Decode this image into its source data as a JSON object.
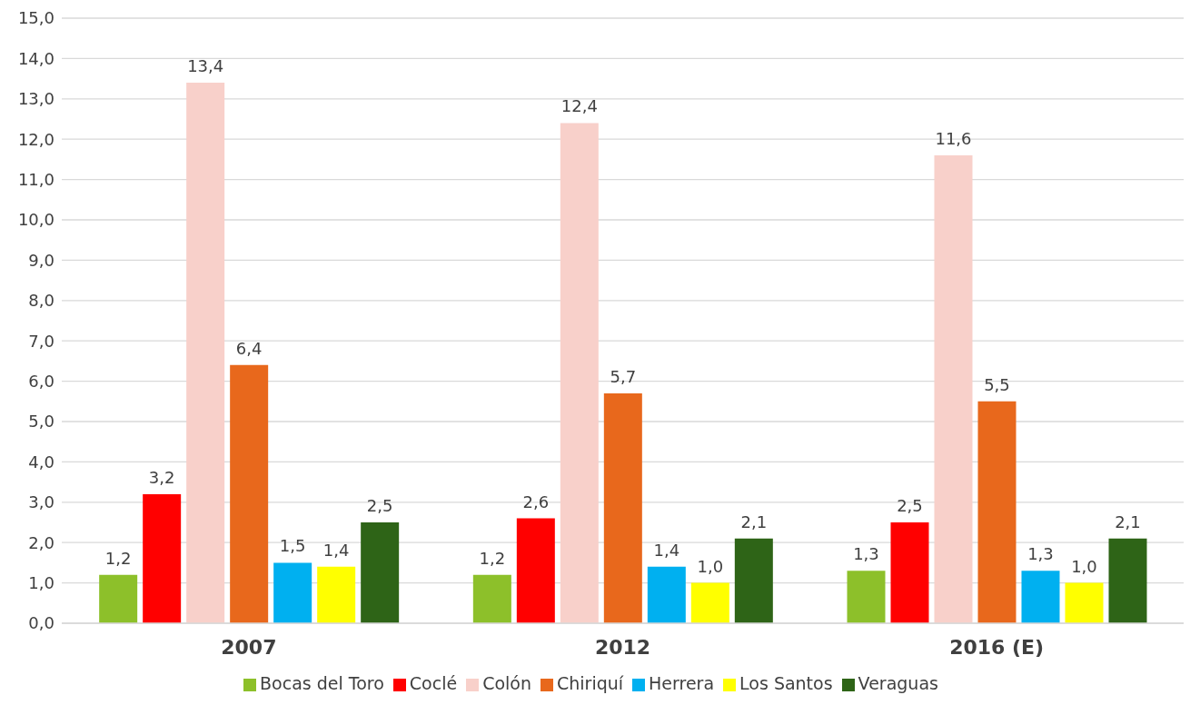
{
  "chart_data": {
    "type": "bar",
    "categories": [
      "2007",
      "2012",
      "2016 (E)"
    ],
    "series": [
      {
        "name": "Bocas del Toro",
        "color": "#8dc02a",
        "values": [
          1.2,
          1.2,
          1.3
        ],
        "value_labels": [
          "1,2",
          "1,2",
          "1,3"
        ]
      },
      {
        "name": "Coclé",
        "color": "#ff0000",
        "values": [
          3.2,
          2.6,
          2.5
        ],
        "value_labels": [
          "3,2",
          "2,6",
          "2,5"
        ]
      },
      {
        "name": "Colón",
        "color": "#f8d0ca",
        "values": [
          13.4,
          12.4,
          11.6
        ],
        "value_labels": [
          "13,4",
          "12,4",
          "11,6"
        ]
      },
      {
        "name": "Chiriquí",
        "color": "#e8681c",
        "values": [
          6.4,
          5.7,
          5.5
        ],
        "value_labels": [
          "6,4",
          "5,7",
          "5,5"
        ]
      },
      {
        "name": "Herrera",
        "color": "#00b0f0",
        "values": [
          1.5,
          1.4,
          1.3
        ],
        "value_labels": [
          "1,5",
          "1,4",
          "1,3"
        ]
      },
      {
        "name": "Los Santos",
        "color": "#ffff00",
        "values": [
          1.4,
          1.0,
          1.0
        ],
        "value_labels": [
          "1,4",
          "1,0",
          "1,0"
        ]
      },
      {
        "name": "Veraguas",
        "color": "#2e6417",
        "values": [
          2.5,
          2.1,
          2.1
        ],
        "value_labels": [
          "2,5",
          "2,1",
          "2,1"
        ]
      }
    ],
    "ylim": [
      0,
      15
    ],
    "yticks": [
      {
        "value": 0,
        "label": "0,0"
      },
      {
        "value": 1,
        "label": "1,0"
      },
      {
        "value": 2,
        "label": "2,0"
      },
      {
        "value": 3,
        "label": "3,0"
      },
      {
        "value": 4,
        "label": "4,0"
      },
      {
        "value": 5,
        "label": "5,0"
      },
      {
        "value": 6,
        "label": "6,0"
      },
      {
        "value": 7,
        "label": "7,0"
      },
      {
        "value": 8,
        "label": "8,0"
      },
      {
        "value": 9,
        "label": "9,0"
      },
      {
        "value": 10,
        "label": "10,0"
      },
      {
        "value": 11,
        "label": "11,0"
      },
      {
        "value": 12,
        "label": "12,0"
      },
      {
        "value": 13,
        "label": "13,0"
      },
      {
        "value": 14,
        "label": "14,0"
      },
      {
        "value": 15,
        "label": "15,0"
      }
    ],
    "grid": "y",
    "legend": "bottom"
  }
}
